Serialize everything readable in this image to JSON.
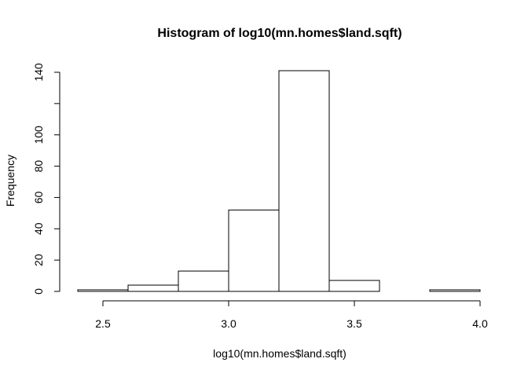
{
  "chart_data": {
    "type": "bar",
    "title": "Histogram of log10(mn.homes$land.sqft)",
    "xlabel": "log10(mn.homes$land.sqft)",
    "ylabel": "Frequency",
    "bin_edges": [
      2.4,
      2.6,
      2.8,
      3.0,
      3.2,
      3.4,
      3.6,
      3.8,
      4.0
    ],
    "values": [
      1,
      4,
      13,
      52,
      141,
      7,
      0,
      1
    ],
    "xlim": [
      2.4,
      4.0
    ],
    "ylim": [
      0,
      141
    ],
    "x_ticks": [
      2.5,
      3.0,
      3.5,
      4.0
    ],
    "x_tick_labels": [
      "2.5",
      "3.0",
      "3.5",
      "4.0"
    ],
    "y_ticks": [
      0,
      20,
      40,
      60,
      80,
      100,
      120,
      140
    ],
    "y_tick_labels": [
      "0",
      "20",
      "40",
      "60",
      "80",
      "100",
      "",
      "140"
    ],
    "grid": false,
    "legend": "none",
    "bar_fill": "#ffffff",
    "bar_stroke": "#000000"
  }
}
